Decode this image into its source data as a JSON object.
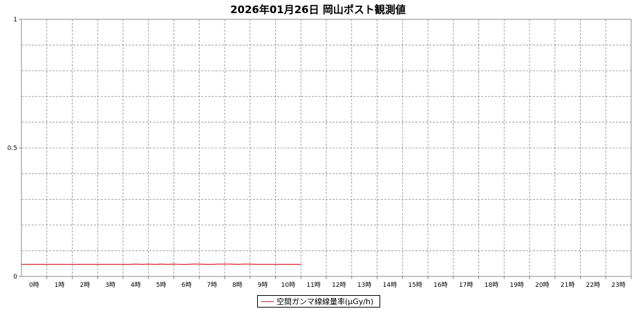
{
  "chart_data": {
    "type": "line",
    "title": "2026年01月26日 岡山ポスト観測値",
    "xlabel": "",
    "ylabel": "",
    "ylim": [
      0,
      1
    ],
    "yticks": [
      "0",
      "0.5",
      "1"
    ],
    "categories": [
      "0時",
      "1時",
      "2時",
      "3時",
      "4時",
      "5時",
      "6時",
      "7時",
      "8時",
      "9時",
      "10時",
      "11時",
      "12時",
      "13時",
      "14時",
      "15時",
      "16時",
      "17時",
      "18時",
      "19時",
      "20時",
      "21時",
      "22時",
      "23時"
    ],
    "grid": true,
    "legend_position": "bottom-center",
    "series": [
      {
        "name": "空間ガンマ線線量率(μGy/h)",
        "color": "#dd2222",
        "x": [
          0,
          0.5,
          1,
          1.5,
          2,
          2.5,
          3,
          3.5,
          4,
          4.25,
          4.5,
          4.75,
          5,
          5.25,
          5.5,
          5.75,
          6,
          6.25,
          6.5,
          6.75,
          7,
          7.25,
          7.5,
          7.75,
          8,
          8.25,
          8.5,
          8.75,
          9,
          9.25,
          9.5,
          9.75,
          10,
          10.5,
          11
        ],
        "values": [
          0.047,
          0.047,
          0.047,
          0.047,
          0.047,
          0.047,
          0.047,
          0.047,
          0.047,
          0.047,
          0.048,
          0.047,
          0.048,
          0.047,
          0.048,
          0.047,
          0.048,
          0.047,
          0.047,
          0.048,
          0.048,
          0.047,
          0.047,
          0.048,
          0.048,
          0.048,
          0.047,
          0.048,
          0.048,
          0.047,
          0.047,
          0.047,
          0.047,
          0.047,
          0.047
        ]
      }
    ]
  }
}
